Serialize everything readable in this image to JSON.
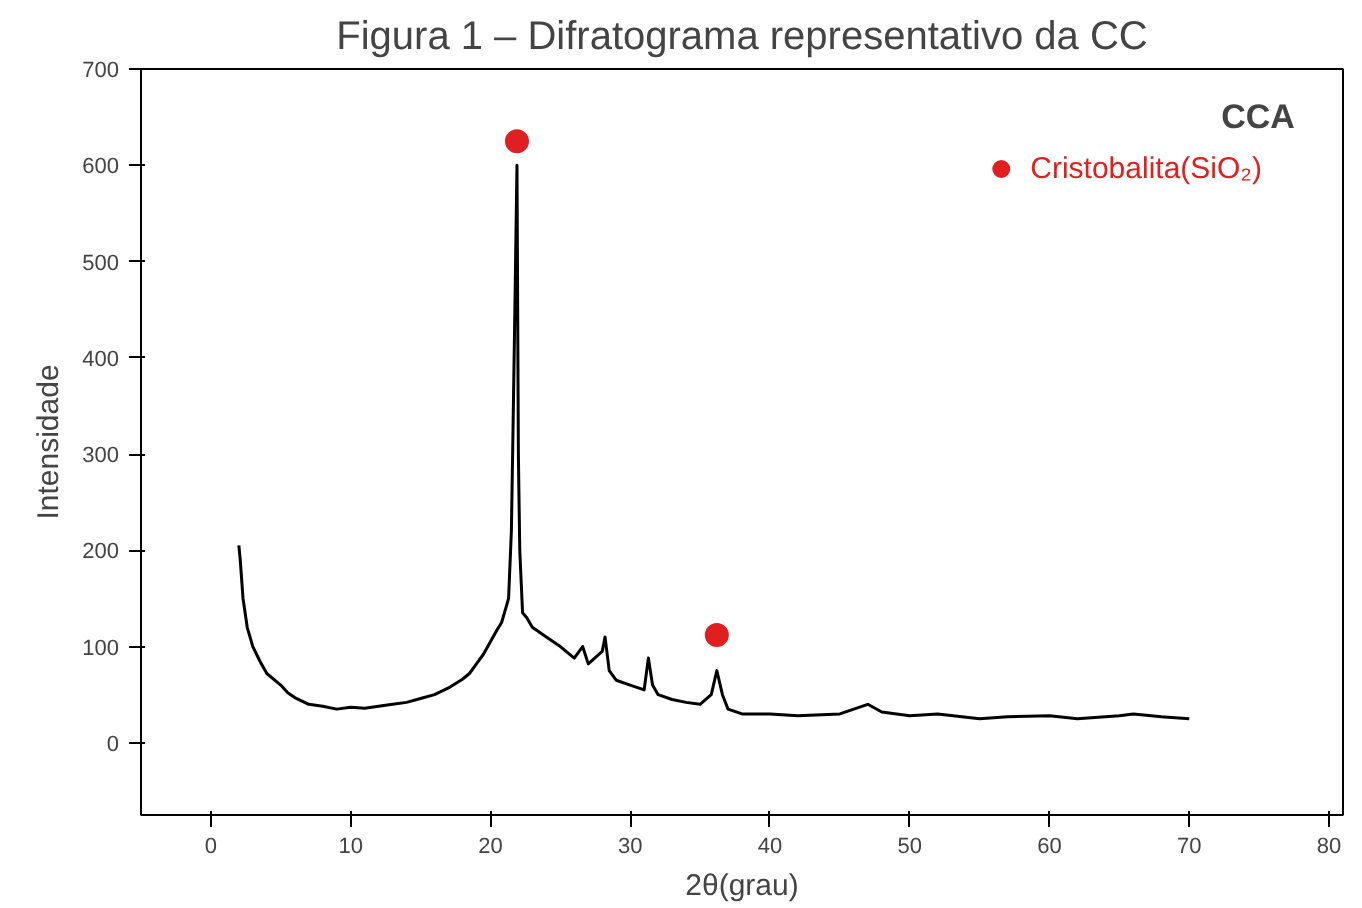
{
  "chart_data": {
    "type": "line",
    "title": "Figura 1 – Difratograma representativo da CC",
    "xlabel": "2θ(grau)",
    "ylabel": "Intensidade",
    "annotations": [
      "CCA"
    ],
    "xlim": [
      -5,
      81
    ],
    "ylim": [
      -75,
      700
    ],
    "xticks": [
      0,
      10,
      20,
      30,
      40,
      50,
      60,
      70,
      80
    ],
    "yticks": [
      0,
      100,
      200,
      300,
      400,
      500,
      600,
      700
    ],
    "grid": false,
    "legend": "top right",
    "series": [
      {
        "color": "#000000",
        "x": [
          2,
          2.1,
          2.3,
          2.6,
          3,
          3.5,
          4,
          5,
          5.5,
          6,
          7,
          8,
          9,
          10,
          11,
          12,
          13,
          14,
          15,
          16,
          17,
          18,
          18.5,
          19,
          19.5,
          20,
          20.5,
          20.8,
          21.1,
          21.3,
          21.5,
          21.6,
          21.75,
          21.9,
          22.0,
          22.1,
          22.3,
          22.6,
          23,
          24,
          25,
          26,
          26.6,
          27,
          28,
          28.2,
          28.5,
          29,
          30,
          31,
          31.3,
          31.6,
          32,
          33,
          34,
          35,
          35.8,
          36.2,
          36.6,
          37,
          38,
          40,
          42,
          45,
          47,
          48,
          50,
          52,
          55,
          57,
          60,
          62,
          65,
          66,
          68,
          70
        ],
        "values": [
          205,
          190,
          150,
          120,
          100,
          85,
          72,
          60,
          52,
          47,
          40,
          38,
          35,
          37,
          36,
          38,
          40,
          42,
          46,
          50,
          57,
          66,
          72,
          82,
          92,
          105,
          118,
          125,
          140,
          150,
          220,
          310,
          450,
          600,
          300,
          200,
          135,
          130,
          120,
          110,
          100,
          88,
          100,
          82,
          95,
          110,
          75,
          65,
          60,
          55,
          88,
          60,
          50,
          45,
          42,
          40,
          50,
          75,
          50,
          35,
          30,
          30,
          28,
          30,
          40,
          32,
          28,
          30,
          25,
          27,
          28,
          25,
          28,
          30,
          27,
          25
        ]
      },
      {
        "type": "scatter",
        "name": "Cristobalita(SiO₂)",
        "color": "#e02020",
        "marker": "circle",
        "x": [
          21.9,
          36.2
        ],
        "values": [
          625,
          112
        ]
      }
    ]
  }
}
